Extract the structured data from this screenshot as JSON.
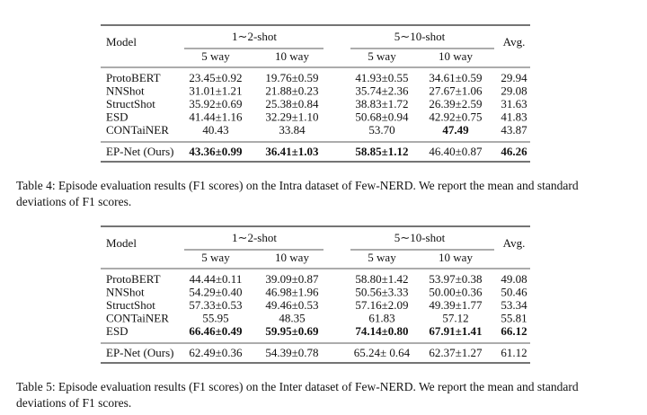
{
  "tables": [
    {
      "header": {
        "model": "Model",
        "group1": "1∼2-shot",
        "group2": "5∼10-shot",
        "avg": "Avg.",
        "sub": [
          "5 way",
          "10 way",
          "5 way",
          "10 way"
        ]
      },
      "rows": [
        {
          "cells": [
            "ProtoBERT",
            "23.45±0.92",
            "19.76±0.59",
            "41.93±0.55",
            "34.61±0.59",
            "29.94"
          ],
          "bold": []
        },
        {
          "cells": [
            "NNShot",
            "31.01±1.21",
            "21.88±0.23",
            "35.74±2.36",
            "27.67±1.06",
            "29.08"
          ],
          "bold": []
        },
        {
          "cells": [
            "StructShot",
            "35.92±0.69",
            "25.38±0.84",
            "38.83±1.72",
            "26.39±2.59",
            "31.63"
          ],
          "bold": []
        },
        {
          "cells": [
            "ESD",
            "41.44±1.16",
            "32.29±1.10",
            "50.68±0.94",
            "42.92±0.75",
            "41.83"
          ],
          "bold": []
        },
        {
          "cells": [
            "CONTaiNER",
            "40.43",
            "33.84",
            "53.70",
            "47.49",
            "43.87"
          ],
          "bold": [
            4
          ]
        },
        {
          "cells": [
            "EP-Net (Ours)",
            "43.36±0.99",
            "36.41±1.03",
            "58.85±1.12",
            "46.40±0.87",
            "46.26"
          ],
          "bold": [
            1,
            2,
            3,
            5
          ]
        }
      ],
      "caption": [
        "Table 4: Episode evaluation results (F1 scores) on the Intra dataset of Few-NERD. We report the mean and standard",
        "deviations of F1 scores."
      ]
    },
    {
      "header": {
        "model": "Model",
        "group1": "1∼2-shot",
        "group2": "5∼10-shot",
        "avg": "Avg.",
        "sub": [
          "5 way",
          "10 way",
          "5 way",
          "10 way"
        ]
      },
      "rows": [
        {
          "cells": [
            "ProtoBERT",
            "44.44±0.11",
            "39.09±0.87",
            "58.80±1.42",
            "53.97±0.38",
            "49.08"
          ],
          "bold": []
        },
        {
          "cells": [
            "NNShot",
            "54.29±0.40",
            "46.98±1.96",
            "50.56±3.33",
            "50.00±0.36",
            "50.46"
          ],
          "bold": []
        },
        {
          "cells": [
            "StructShot",
            "57.33±0.53",
            "49.46±0.53",
            "57.16±2.09",
            "49.39±1.77",
            "53.34"
          ],
          "bold": []
        },
        {
          "cells": [
            "CONTaiNER",
            "55.95",
            "48.35",
            "61.83",
            "57.12",
            "55.81"
          ],
          "bold": []
        },
        {
          "cells": [
            "ESD",
            "66.46±0.49",
            "59.95±0.69",
            "74.14±0.80",
            "67.91±1.41",
            "66.12"
          ],
          "bold": [
            1,
            2,
            3,
            4,
            5
          ]
        },
        {
          "cells": [
            "EP-Net (Ours)",
            "62.49±0.36",
            "54.39±0.78",
            "65.24± 0.64",
            "62.37±1.27",
            "61.12"
          ],
          "bold": []
        }
      ],
      "caption": [
        "Table 5: Episode evaluation results (F1 scores) on the Inter dataset of Few-NERD. We report the mean and standard",
        "deviations of F1 scores."
      ]
    }
  ]
}
